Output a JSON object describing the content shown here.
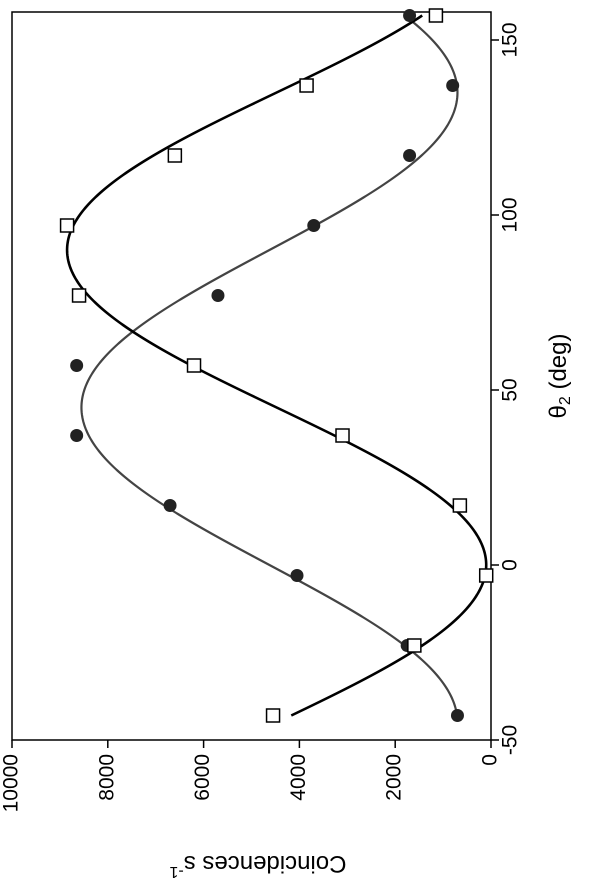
{
  "chart_data": {
    "type": "scatter",
    "orientation": "rotated-90-clockwise",
    "xlabel_main": "θ",
    "xlabel_sub": "2",
    "xlabel_unit": " (deg)",
    "ylabel": "Coincidences s",
    "ylabel_sup": "-1",
    "xlim": [
      -50,
      165
    ],
    "ylim": [
      0,
      10000
    ],
    "x_ticks": [
      -50,
      0,
      50,
      100,
      150
    ],
    "y_ticks": [
      0,
      2000,
      4000,
      6000,
      8000,
      10000
    ],
    "grid": false,
    "series": [
      {
        "marker": "filled-circle",
        "color": "#222222",
        "points": [
          {
            "x": -43,
            "y": 700
          },
          {
            "x": -23,
            "y": 1750
          },
          {
            "x": -3,
            "y": 4050
          },
          {
            "x": 17,
            "y": 6700
          },
          {
            "x": 37,
            "y": 8650
          },
          {
            "x": 57,
            "y": 8650
          },
          {
            "x": 77,
            "y": 5700
          },
          {
            "x": 97,
            "y": 3700
          },
          {
            "x": 117,
            "y": 1700
          },
          {
            "x": 137,
            "y": 800
          },
          {
            "x": 157,
            "y": 1700
          }
        ],
        "fit": {
          "model": "A + B*sin^2(x - phase)",
          "offset": 700,
          "amplitude": 7850,
          "peak_x": 45,
          "color": "#444444"
        }
      },
      {
        "marker": "open-square",
        "color": "#000000",
        "points": [
          {
            "x": -43,
            "y": 4550
          },
          {
            "x": -23,
            "y": 1600
          },
          {
            "x": -3,
            "y": 100
          },
          {
            "x": 17,
            "y": 650
          },
          {
            "x": 37,
            "y": 3100
          },
          {
            "x": 57,
            "y": 6200
          },
          {
            "x": 77,
            "y": 8600
          },
          {
            "x": 97,
            "y": 8850
          },
          {
            "x": 117,
            "y": 6600
          },
          {
            "x": 137,
            "y": 3850
          },
          {
            "x": 157,
            "y": 1150
          }
        ],
        "fit": {
          "model": "A + B*sin^2(x - phase)",
          "offset": 100,
          "amplitude": 8750,
          "peak_x": 90,
          "color": "#000000"
        }
      }
    ]
  }
}
